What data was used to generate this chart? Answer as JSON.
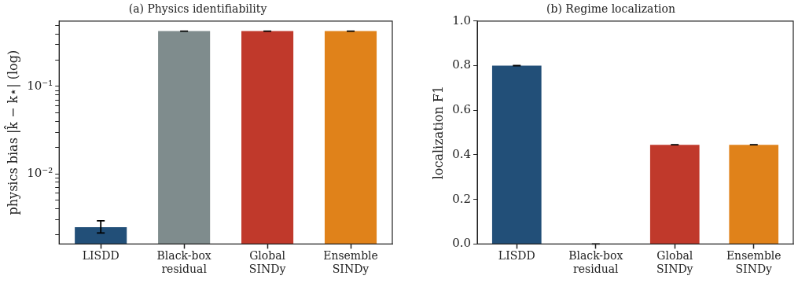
{
  "chart_data": [
    {
      "type": "bar",
      "title": "(a) Physics identifiability",
      "ylabel": "physics bias |k̂ − k⋆| (log)",
      "categories": [
        "LISDD",
        "Black-box residual",
        "Global SINDy",
        "Ensemble SINDy"
      ],
      "values": [
        0.00245,
        0.43,
        0.43,
        0.43
      ],
      "colors": [
        "#224f78",
        "#7f8c8d",
        "#c0392b",
        "#e0821a"
      ],
      "errors": [
        [
          0.0021,
          0.0029
        ],
        0,
        0,
        0
      ],
      "log": true,
      "ylim": [
        0.00157,
        0.56
      ],
      "yticks": [
        {
          "value": 0.002,
          "label": null
        },
        {
          "value": 0.003,
          "label": null
        },
        {
          "value": 0.004,
          "label": null
        },
        {
          "value": 0.005,
          "label": null
        },
        {
          "value": 0.006,
          "label": null
        },
        {
          "value": 0.007,
          "label": null
        },
        {
          "value": 0.008,
          "label": null
        },
        {
          "value": 0.009,
          "label": null
        },
        {
          "value": 0.01,
          "label": "10⁻²"
        },
        {
          "value": 0.02,
          "label": null
        },
        {
          "value": 0.03,
          "label": null
        },
        {
          "value": 0.04,
          "label": null
        },
        {
          "value": 0.05,
          "label": null
        },
        {
          "value": 0.06,
          "label": null
        },
        {
          "value": 0.07,
          "label": null
        },
        {
          "value": 0.08,
          "label": null
        },
        {
          "value": 0.09,
          "label": null
        },
        {
          "value": 0.1,
          "label": "10⁻¹"
        },
        {
          "value": 0.2,
          "label": null
        },
        {
          "value": 0.3,
          "label": null
        },
        {
          "value": 0.4,
          "label": null
        },
        {
          "value": 0.5,
          "label": null
        }
      ],
      "grid": false,
      "legend": false
    },
    {
      "type": "bar",
      "title": "(b) Regime localization",
      "ylabel": "localization F1",
      "categories": [
        "LISDD",
        "Black-box residual",
        "Global SINDy",
        "Ensemble SINDy"
      ],
      "values": [
        0.8,
        0,
        0.445,
        0.445
      ],
      "colors": [
        "#224f78",
        "#7f8c8d",
        "#c0392b",
        "#e0821a"
      ],
      "errors": [
        0,
        0,
        0,
        0
      ],
      "ylim": [
        0,
        1
      ],
      "yticks": [
        {
          "value": 0,
          "label": "0.0"
        },
        0.2,
        0.4,
        0.6,
        0.8,
        {
          "value": 1,
          "label": "1.0"
        }
      ],
      "grid": false,
      "legend": false
    }
  ]
}
